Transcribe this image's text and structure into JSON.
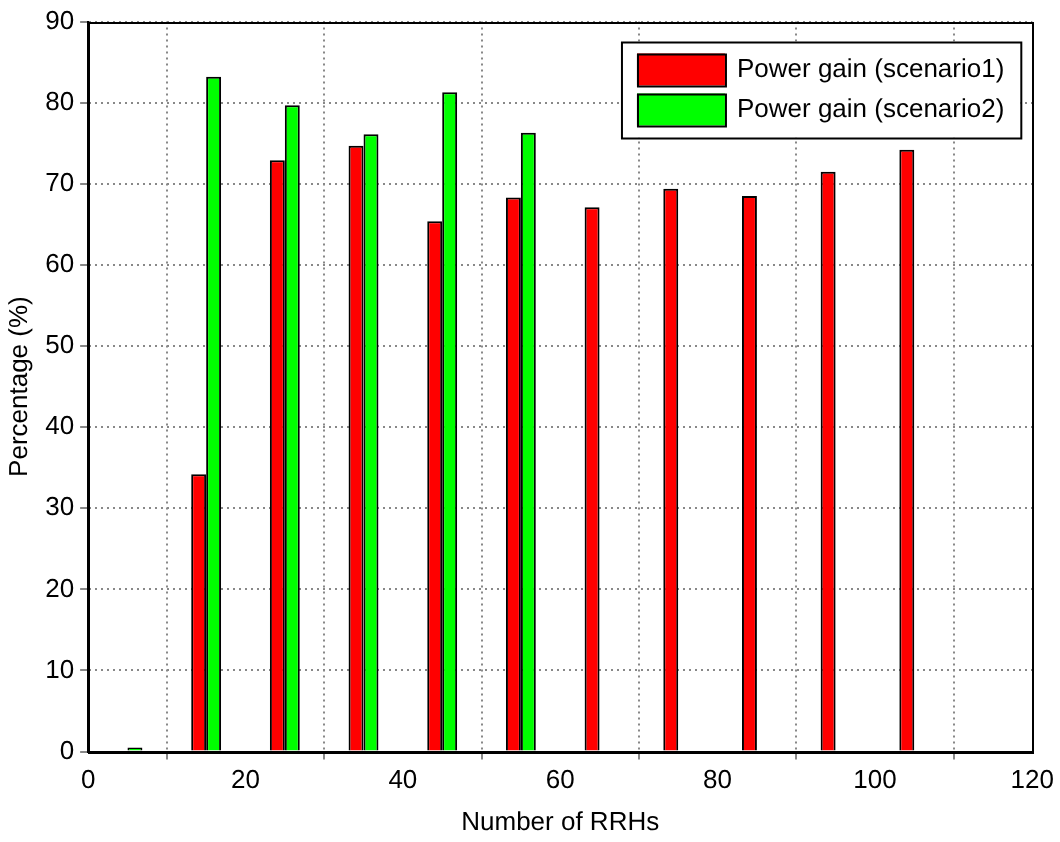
{
  "chart_data": {
    "type": "bar",
    "xlabel": "Number of RRHs",
    "ylabel": "Percentage (%)",
    "x": [
      5,
      15,
      25,
      35,
      45,
      55,
      65,
      75,
      85,
      95,
      105
    ],
    "series": [
      {
        "name": "Power gain (scenario1)",
        "color": "#ff0000",
        "values": [
          null,
          34.2,
          72.9,
          74.7,
          65.4,
          68.3,
          67.1,
          69.4,
          68.5,
          71.5,
          74.2
        ]
      },
      {
        "name": "Power gain (scenario2)",
        "color": "#00ff00",
        "values": [
          0.5,
          83.2,
          79.7,
          76.1,
          81.3,
          76.3,
          null,
          null,
          null,
          null,
          null
        ]
      }
    ],
    "xlim": [
      0,
      120
    ],
    "xticks": [
      0,
      20,
      40,
      60,
      80,
      100,
      120
    ],
    "ylim": [
      0,
      90
    ],
    "yticks": [
      0,
      10,
      20,
      30,
      40,
      50,
      60,
      70,
      80,
      90
    ],
    "grid": true,
    "legend": "top right"
  }
}
